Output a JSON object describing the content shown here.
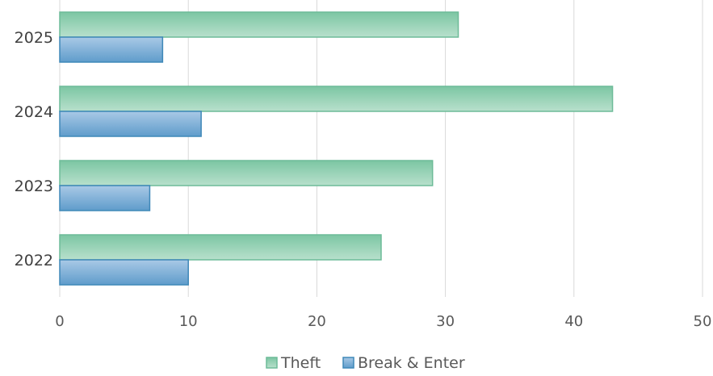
{
  "chart_data": {
    "type": "bar",
    "orientation": "horizontal",
    "categories": [
      "2022",
      "2023",
      "2024",
      "2025"
    ],
    "series": [
      {
        "name": "Theft",
        "values": [
          25,
          29,
          43,
          31
        ],
        "color": "#8fcfb0",
        "stroke": "#6dbb98"
      },
      {
        "name": "Break & Enter",
        "values": [
          10,
          7,
          11,
          8
        ],
        "color": "#7fb0d6",
        "stroke": "#3f88b8"
      }
    ],
    "xlim": [
      0,
      50
    ],
    "xticks": [
      0,
      10,
      20,
      30,
      40,
      50
    ],
    "grid": "vertical",
    "legend_position": "bottom"
  }
}
